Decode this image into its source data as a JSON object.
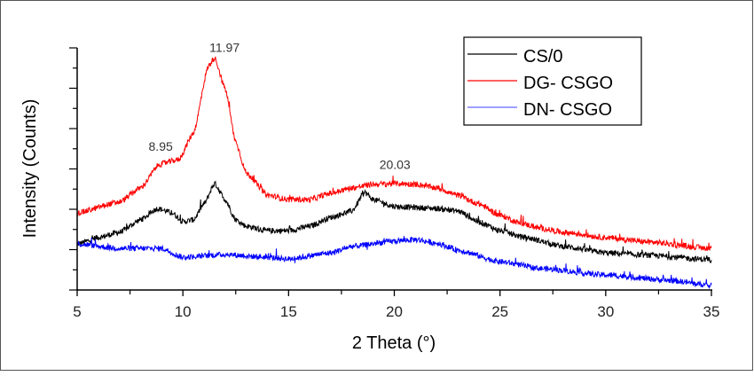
{
  "chart_data": {
    "type": "line",
    "title": "",
    "xlabel": "2 Theta (°)",
    "ylabel": "Intensity (Counts)",
    "xlim": [
      5,
      35
    ],
    "ylim": [
      0,
      6
    ],
    "xticks": [
      "5",
      "10",
      "15",
      "20",
      "25",
      "30",
      "35"
    ],
    "yticks_labeled": false,
    "grid": false,
    "legend_position": "top-right",
    "series": [
      {
        "name": "CS/0",
        "color": "#000000",
        "x": [
          5,
          6,
          7,
          8,
          8.8,
          9.5,
          10,
          10.5,
          11,
          11.5,
          12,
          12.5,
          13,
          14,
          15,
          16,
          17,
          18,
          18.6,
          19,
          20,
          22,
          23,
          24,
          25,
          26,
          28,
          30,
          32,
          35
        ],
        "y": [
          1.14,
          1.3,
          1.43,
          1.74,
          2.02,
          1.91,
          1.69,
          1.74,
          2.13,
          2.64,
          2.24,
          1.74,
          1.58,
          1.47,
          1.47,
          1.58,
          1.8,
          1.96,
          2.42,
          2.24,
          2.07,
          2.02,
          1.96,
          1.69,
          1.47,
          1.32,
          1.08,
          0.92,
          0.86,
          0.75
        ]
      },
      {
        "name": "DG- CSGO",
        "color": "#ff0000",
        "x": [
          5,
          7,
          8,
          8.9,
          9.8,
          10.5,
          11.2,
          11.5,
          12,
          12.5,
          13,
          14,
          15,
          16,
          17,
          18,
          19,
          20,
          21,
          22,
          23,
          24,
          25,
          26,
          27,
          28,
          30,
          32,
          35
        ],
        "y": [
          1.91,
          2.18,
          2.53,
          3.12,
          3.23,
          3.89,
          5.54,
          5.76,
          4.99,
          3.67,
          2.9,
          2.35,
          2.24,
          2.24,
          2.4,
          2.53,
          2.62,
          2.64,
          2.62,
          2.53,
          2.35,
          2.13,
          1.85,
          1.65,
          1.52,
          1.43,
          1.3,
          1.19,
          1.03
        ]
      },
      {
        "name": "DN- CSGO",
        "color": "#0000ff",
        "x": [
          5,
          7,
          9,
          10,
          12,
          14,
          15,
          17,
          18,
          20,
          21,
          22,
          23,
          25,
          27,
          30,
          33,
          35
        ],
        "y": [
          1.14,
          1.03,
          1.03,
          0.81,
          0.88,
          0.81,
          0.77,
          0.92,
          1.08,
          1.21,
          1.25,
          1.16,
          0.99,
          0.7,
          0.53,
          0.37,
          0.24,
          0.11
        ]
      }
    ],
    "annotations": [
      {
        "text": "11.97",
        "x": 11.97,
        "y": 5.9
      },
      {
        "text": "8.95",
        "x": 8.95,
        "y": 3.45
      },
      {
        "text": "20.03",
        "x": 20.03,
        "y": 3.0
      }
    ]
  }
}
